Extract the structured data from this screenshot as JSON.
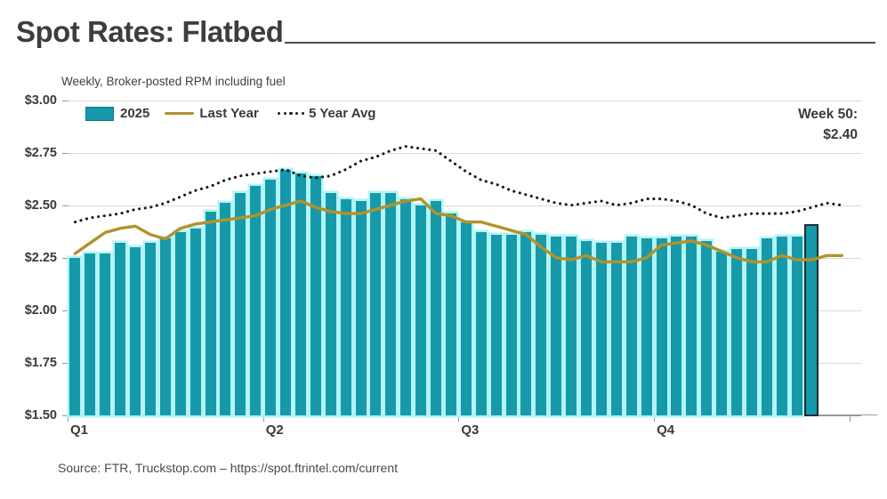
{
  "title": "Spot Rates: Flatbed",
  "subtitle": "Weekly, Broker-posted RPM including fuel",
  "annotation": {
    "line1": "Week 50:",
    "line2": "$2.40"
  },
  "source": "Source: FTR, Truckstop.com – https://spot.ftrintel.com/current",
  "legend": {
    "items": [
      {
        "label": "2025",
        "swatch": "teal-bar-swatch"
      },
      {
        "label": "Last Year",
        "swatch": "olive-line-swatch"
      },
      {
        "label": "5 Year Avg",
        "swatch": "black-dotted-swatch"
      }
    ]
  },
  "colors": {
    "bar_fill": "#1699a9",
    "bar_glow": "#b2f4f7",
    "highlight_border": "#1d2b36",
    "last_year_line": "#b2922b",
    "five_year_dots": "#1a1a1a",
    "gridline": "#dadada",
    "axis": "#9a9a9a",
    "text": "#3f3f3f"
  },
  "chart_data": {
    "type": "bar",
    "title": "Spot Rates: Flatbed",
    "subtitle": "Weekly, Broker-posted RPM including fuel",
    "x_unit": "week of year",
    "x_tick_labels": [
      "Q1",
      "Q2",
      "Q3",
      "Q4"
    ],
    "weeks_per_quarter": 13,
    "ylim": [
      1.5,
      3.0
    ],
    "y_tick_values": [
      3.0,
      2.75,
      2.5,
      2.25,
      2.0,
      1.75,
      1.5
    ],
    "y_tick_labels": [
      "$3.00",
      "$2.75",
      "$2.50",
      "$2.25",
      "$2.00",
      "$1.75",
      "$1.50"
    ],
    "grid": true,
    "legend_position": "top-left",
    "highlight": {
      "week": 50,
      "value": 2.4,
      "label": "Week 50:",
      "value_label": "$2.40"
    },
    "series": [
      {
        "name": "2025",
        "type": "bar",
        "weeks_start": 1,
        "values": [
          2.25,
          2.27,
          2.27,
          2.32,
          2.3,
          2.32,
          2.34,
          2.37,
          2.39,
          2.47,
          2.51,
          2.56,
          2.59,
          2.62,
          2.67,
          2.65,
          2.64,
          2.56,
          2.53,
          2.52,
          2.56,
          2.56,
          2.53,
          2.5,
          2.52,
          2.46,
          2.42,
          2.37,
          2.36,
          2.36,
          2.37,
          2.36,
          2.35,
          2.35,
          2.33,
          2.32,
          2.32,
          2.35,
          2.34,
          2.34,
          2.35,
          2.35,
          2.33,
          2.28,
          2.29,
          2.29,
          2.34,
          2.35,
          2.35,
          2.4
        ]
      },
      {
        "name": "Last Year",
        "type": "line",
        "weeks_start": 1,
        "values": [
          2.27,
          2.32,
          2.37,
          2.39,
          2.4,
          2.36,
          2.34,
          2.39,
          2.41,
          2.42,
          2.43,
          2.44,
          2.45,
          2.48,
          2.5,
          2.52,
          2.49,
          2.47,
          2.46,
          2.46,
          2.48,
          2.5,
          2.52,
          2.53,
          2.46,
          2.45,
          2.42,
          2.42,
          2.4,
          2.38,
          2.36,
          2.3,
          2.25,
          2.24,
          2.26,
          2.23,
          2.23,
          2.23,
          2.25,
          2.31,
          2.32,
          2.33,
          2.31,
          2.28,
          2.25,
          2.23,
          2.23,
          2.26,
          2.24,
          2.24,
          2.26,
          2.26
        ]
      },
      {
        "name": "5 Year Avg",
        "type": "dotted-line",
        "weeks_start": 1,
        "values": [
          2.42,
          2.44,
          2.45,
          2.46,
          2.48,
          2.49,
          2.51,
          2.54,
          2.57,
          2.59,
          2.62,
          2.64,
          2.65,
          2.66,
          2.67,
          2.64,
          2.63,
          2.64,
          2.67,
          2.71,
          2.73,
          2.76,
          2.78,
          2.77,
          2.76,
          2.71,
          2.66,
          2.62,
          2.6,
          2.57,
          2.55,
          2.53,
          2.51,
          2.5,
          2.51,
          2.52,
          2.5,
          2.51,
          2.53,
          2.53,
          2.52,
          2.5,
          2.46,
          2.44,
          2.45,
          2.46,
          2.46,
          2.46,
          2.47,
          2.49,
          2.51,
          2.5
        ]
      }
    ]
  }
}
